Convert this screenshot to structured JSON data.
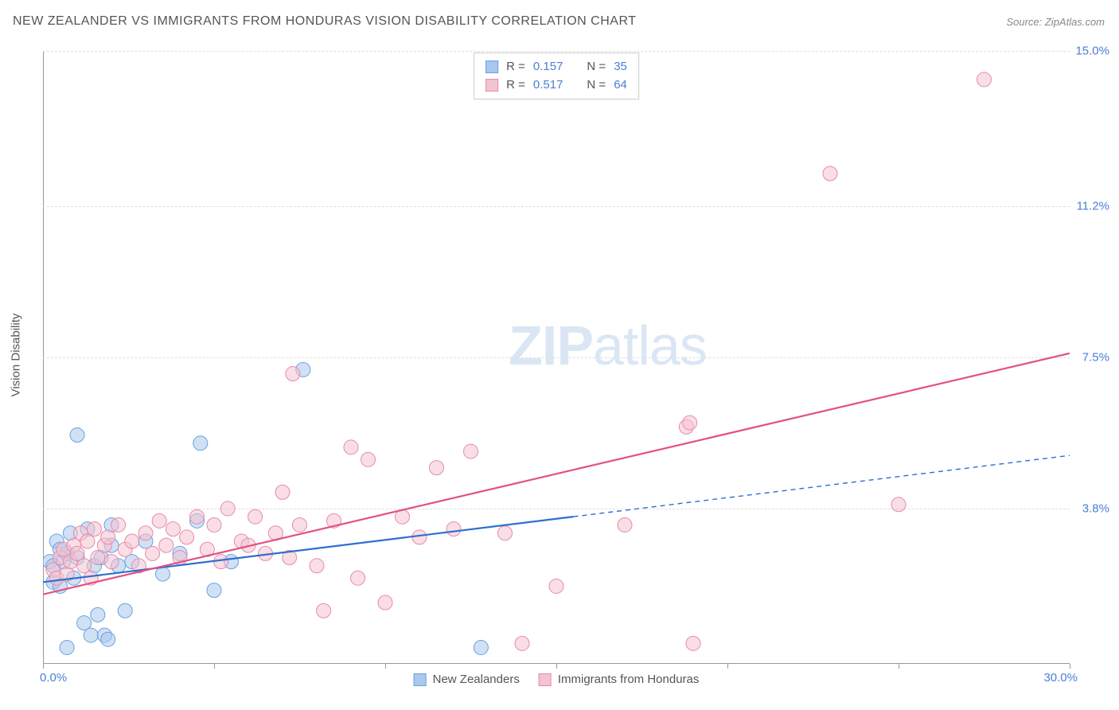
{
  "title": "NEW ZEALANDER VS IMMIGRANTS FROM HONDURAS VISION DISABILITY CORRELATION CHART",
  "source": "Source: ZipAtlas.com",
  "ylabel": "Vision Disability",
  "watermark": {
    "bold": "ZIP",
    "rest": "atlas"
  },
  "chart": {
    "type": "scatter-with-regression",
    "xlim": [
      0,
      30
    ],
    "ylim": [
      0,
      15
    ],
    "xtick_marks": [
      0,
      5,
      10,
      15,
      20,
      25,
      30
    ],
    "xtick_labels": {
      "left": "0.0%",
      "right": "30.0%"
    },
    "ytick_labels": [
      {
        "value": 3.8,
        "label": "3.8%"
      },
      {
        "value": 7.5,
        "label": "7.5%"
      },
      {
        "value": 11.2,
        "label": "11.2%"
      },
      {
        "value": 15.0,
        "label": "15.0%"
      }
    ],
    "gridlines_y": [
      0,
      3.8,
      7.5,
      11.2,
      15.0
    ],
    "background_color": "#ffffff",
    "grid_color": "#dddddd",
    "axis_color": "#999999",
    "marker_radius": 9,
    "marker_opacity": 0.55,
    "line_width_solid": 2.2,
    "line_width_dashed": 1.4,
    "series": [
      {
        "name": "New Zealanders",
        "color_fill": "#a9c8ed",
        "color_stroke": "#6aa0de",
        "color_line": "#2d6fd0",
        "R": "0.157",
        "N": "35",
        "regression": {
          "x1": 0,
          "y1": 2.0,
          "x2": 30,
          "y2": 5.1,
          "solid_until_x": 15.5
        },
        "points": [
          [
            0.2,
            2.5
          ],
          [
            0.3,
            2.4
          ],
          [
            0.3,
            2.0
          ],
          [
            0.4,
            3.0
          ],
          [
            0.5,
            2.8
          ],
          [
            0.5,
            1.9
          ],
          [
            0.6,
            2.5
          ],
          [
            0.7,
            2.7
          ],
          [
            0.7,
            0.4
          ],
          [
            0.8,
            3.2
          ],
          [
            0.9,
            2.1
          ],
          [
            1.0,
            2.6
          ],
          [
            1.0,
            5.6
          ],
          [
            1.2,
            1.0
          ],
          [
            1.3,
            3.3
          ],
          [
            1.4,
            0.7
          ],
          [
            1.5,
            2.4
          ],
          [
            1.6,
            1.2
          ],
          [
            1.7,
            2.6
          ],
          [
            1.8,
            0.7
          ],
          [
            1.9,
            0.6
          ],
          [
            2.0,
            2.9
          ],
          [
            2.0,
            3.4
          ],
          [
            2.2,
            2.4
          ],
          [
            2.4,
            1.3
          ],
          [
            2.6,
            2.5
          ],
          [
            3.0,
            3.0
          ],
          [
            3.5,
            2.2
          ],
          [
            4.0,
            2.7
          ],
          [
            4.5,
            3.5
          ],
          [
            4.6,
            5.4
          ],
          [
            5.0,
            1.8
          ],
          [
            5.5,
            2.5
          ],
          [
            7.6,
            7.2
          ],
          [
            12.8,
            0.4
          ]
        ]
      },
      {
        "name": "Immigrants from Honduras",
        "color_fill": "#f4c3d0",
        "color_stroke": "#e88aa6",
        "color_line": "#e25084",
        "R": "0.517",
        "N": "64",
        "regression": {
          "x1": 0,
          "y1": 1.7,
          "x2": 30,
          "y2": 7.6,
          "solid_until_x": 30
        },
        "points": [
          [
            0.3,
            2.3
          ],
          [
            0.4,
            2.1
          ],
          [
            0.5,
            2.6
          ],
          [
            0.6,
            2.8
          ],
          [
            0.7,
            2.2
          ],
          [
            0.8,
            2.5
          ],
          [
            0.9,
            2.9
          ],
          [
            1.0,
            2.7
          ],
          [
            1.1,
            3.2
          ],
          [
            1.2,
            2.4
          ],
          [
            1.3,
            3.0
          ],
          [
            1.4,
            2.1
          ],
          [
            1.5,
            3.3
          ],
          [
            1.6,
            2.6
          ],
          [
            1.8,
            2.9
          ],
          [
            1.9,
            3.1
          ],
          [
            2.0,
            2.5
          ],
          [
            2.2,
            3.4
          ],
          [
            2.4,
            2.8
          ],
          [
            2.6,
            3.0
          ],
          [
            2.8,
            2.4
          ],
          [
            3.0,
            3.2
          ],
          [
            3.2,
            2.7
          ],
          [
            3.4,
            3.5
          ],
          [
            3.6,
            2.9
          ],
          [
            3.8,
            3.3
          ],
          [
            4.0,
            2.6
          ],
          [
            4.2,
            3.1
          ],
          [
            4.5,
            3.6
          ],
          [
            4.8,
            2.8
          ],
          [
            5.0,
            3.4
          ],
          [
            5.2,
            2.5
          ],
          [
            5.4,
            3.8
          ],
          [
            5.8,
            3.0
          ],
          [
            6.0,
            2.9
          ],
          [
            6.2,
            3.6
          ],
          [
            6.5,
            2.7
          ],
          [
            6.8,
            3.2
          ],
          [
            7.0,
            4.2
          ],
          [
            7.2,
            2.6
          ],
          [
            7.3,
            7.1
          ],
          [
            7.5,
            3.4
          ],
          [
            8.0,
            2.4
          ],
          [
            8.2,
            1.3
          ],
          [
            8.5,
            3.5
          ],
          [
            9.0,
            5.3
          ],
          [
            9.2,
            2.1
          ],
          [
            9.5,
            5.0
          ],
          [
            10.0,
            1.5
          ],
          [
            10.5,
            3.6
          ],
          [
            11.0,
            3.1
          ],
          [
            11.5,
            4.8
          ],
          [
            12.0,
            3.3
          ],
          [
            12.5,
            5.2
          ],
          [
            13.5,
            3.2
          ],
          [
            14.0,
            0.5
          ],
          [
            15.0,
            1.9
          ],
          [
            17.0,
            3.4
          ],
          [
            18.8,
            5.8
          ],
          [
            18.9,
            5.9
          ],
          [
            19.0,
            0.5
          ],
          [
            23.0,
            12.0
          ],
          [
            25.0,
            3.9
          ],
          [
            27.5,
            14.3
          ]
        ]
      }
    ]
  },
  "legend_top": [
    {
      "series_index": 0,
      "r_label": "R = ",
      "n_label": "N = "
    },
    {
      "series_index": 1,
      "r_label": "R = ",
      "n_label": "N = "
    }
  ],
  "legend_bottom": [
    {
      "series_index": 0
    },
    {
      "series_index": 1
    }
  ]
}
